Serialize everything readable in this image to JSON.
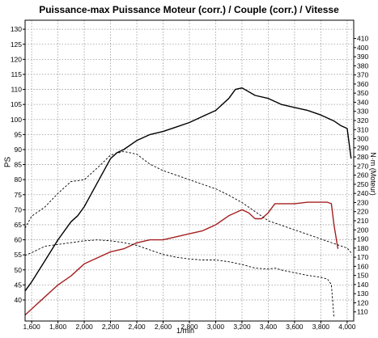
{
  "chart_data": {
    "type": "line",
    "title": "Puissance-max Puissance Moteur (corr.) / Couple (corr.) / Vitesse",
    "xlabel": "1/min",
    "ylabel_left": "PS",
    "ylabel_right": "N·m (Moteur)",
    "xlim": [
      1550,
      4050
    ],
    "ylim_left": [
      33,
      133
    ],
    "ylim_right": [
      100,
      430
    ],
    "x_ticks": [
      "1,600",
      "1,800",
      "2,000",
      "2,200",
      "2,400",
      "2,600",
      "2,800",
      "3,000",
      "3,200",
      "3,400",
      "3,600",
      "3,800",
      "4,000"
    ],
    "y_ticks_left": [
      40,
      45,
      50,
      55,
      60,
      65,
      70,
      75,
      80,
      85,
      90,
      95,
      100,
      105,
      110,
      115,
      120,
      125,
      130
    ],
    "y_ticks_right": [
      110,
      120,
      130,
      140,
      150,
      160,
      170,
      180,
      190,
      200,
      210,
      220,
      230,
      240,
      250,
      260,
      270,
      280,
      290,
      300,
      310,
      320,
      330,
      340,
      350,
      360,
      370,
      380,
      390,
      400,
      410
    ],
    "grid": true,
    "series": [
      {
        "axis": "left",
        "color": "#000000",
        "style": "solid",
        "x": [
          1550,
          1600,
          1700,
          1800,
          1900,
          1950,
          2000,
          2100,
          2200,
          2250,
          2300,
          2400,
          2500,
          2600,
          2700,
          2800,
          2900,
          3000,
          3100,
          3150,
          3200,
          3300,
          3400,
          3500,
          3600,
          3700,
          3800,
          3900,
          3950,
          4000,
          4030
        ],
        "y": [
          43,
          46,
          53,
          60,
          66,
          68,
          71,
          79,
          87,
          89,
          90,
          93,
          95,
          96,
          97.5,
          99,
          101,
          103,
          107,
          110,
          110.5,
          108,
          107,
          105,
          104,
          103,
          101.5,
          99.5,
          98,
          97,
          87
        ]
      },
      {
        "axis": "left",
        "color": "#a52020",
        "style": "solid",
        "x": [
          1550,
          1600,
          1700,
          1800,
          1900,
          2000,
          2100,
          2200,
          2300,
          2400,
          2500,
          2600,
          2700,
          2800,
          2900,
          3000,
          3100,
          3200,
          3250,
          3300,
          3350,
          3400,
          3450,
          3500,
          3600,
          3700,
          3800,
          3850,
          3880,
          3900,
          3930
        ],
        "y": [
          35,
          37,
          41,
          45,
          48,
          52,
          54,
          56,
          57,
          59,
          60,
          60,
          61,
          62,
          63,
          65,
          68,
          70,
          69,
          67,
          67,
          69,
          72,
          72,
          72,
          72.5,
          72.5,
          72.5,
          72,
          65,
          57
        ]
      },
      {
        "axis": "right",
        "color": "#000000",
        "style": "dashed",
        "x": [
          1550,
          1600,
          1700,
          1800,
          1900,
          2000,
          2100,
          2200,
          2300,
          2400,
          2500,
          2600,
          2700,
          2800,
          2900,
          3000,
          3100,
          3200,
          3300,
          3400,
          3500,
          3600,
          3700,
          3800,
          3900,
          4000,
          4030
        ],
        "y": [
          202,
          215,
          225,
          240,
          253,
          255,
          268,
          282,
          286,
          283,
          272,
          265,
          260,
          255,
          250,
          245,
          238,
          230,
          220,
          210,
          205,
          200,
          195,
          190,
          185,
          180,
          175
        ]
      },
      {
        "axis": "right",
        "color": "#000000",
        "style": "dashed",
        "x": [
          1550,
          1600,
          1700,
          1800,
          1900,
          2000,
          2100,
          2200,
          2300,
          2400,
          2500,
          2600,
          2700,
          2800,
          2900,
          3000,
          3100,
          3200,
          3300,
          3400,
          3450,
          3500,
          3600,
          3700,
          3800,
          3850,
          3880,
          3900
        ],
        "y": [
          172,
          175,
          182,
          184,
          186,
          188,
          189,
          188,
          186,
          183,
          178,
          173,
          170,
          168,
          167,
          167,
          165,
          162,
          158,
          157,
          158,
          156,
          153,
          150,
          148,
          146,
          140,
          104
        ]
      }
    ]
  }
}
